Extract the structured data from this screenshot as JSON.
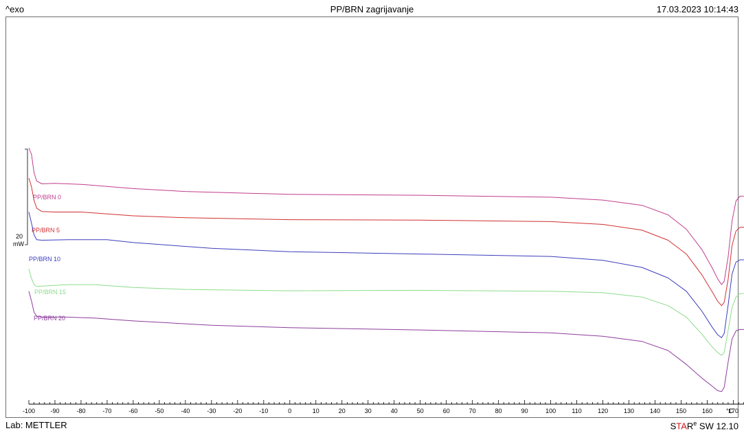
{
  "header": {
    "left": "^exo",
    "title": "PP/BRN zagrijavanje",
    "datetime": "17.03.2023 10:14:43"
  },
  "footer": {
    "lab": "Lab: METTLER",
    "software_star_s": "S",
    "software_star_ta": "TA",
    "software_star_r": "R",
    "software_star_sup": "e",
    "software_version": " SW 12.10"
  },
  "chart_data": {
    "type": "line",
    "title": "PP/BRN zagrijavanje",
    "xlabel": "",
    "xunit": "°C",
    "ylabel": "^exo",
    "xlim": [
      -100,
      180
    ],
    "xticks": [
      -100,
      -90,
      -80,
      -70,
      -60,
      -50,
      -40,
      -30,
      -20,
      -10,
      0,
      10,
      20,
      30,
      40,
      50,
      60,
      70,
      80,
      90,
      100,
      110,
      120,
      130,
      140,
      150,
      160,
      170
    ],
    "scale_bar": {
      "value": "20",
      "unit": "mW",
      "mw": 20
    },
    "grid": false,
    "series": [
      {
        "name": "PP/BRN 0",
        "color": "#c03c8c",
        "points": [
          [
            -100,
            38.8
          ],
          [
            -99,
            37.5
          ],
          [
            -98,
            33.6
          ],
          [
            -97,
            31.9
          ],
          [
            -95,
            31.3
          ],
          [
            -90,
            31.4
          ],
          [
            -80,
            31.2
          ],
          [
            -60,
            30.3
          ],
          [
            -40,
            29.7
          ],
          [
            0,
            29.1
          ],
          [
            50,
            28.9
          ],
          [
            100,
            28.5
          ],
          [
            120,
            27.9
          ],
          [
            135,
            26.8
          ],
          [
            145,
            24.8
          ],
          [
            152,
            21.8
          ],
          [
            158,
            17.5
          ],
          [
            162,
            13.6
          ],
          [
            164,
            11.4
          ],
          [
            165.5,
            10.2
          ],
          [
            166.5,
            10.9
          ],
          [
            168,
            16.0
          ],
          [
            169.5,
            23.5
          ],
          [
            171,
            27.7
          ],
          [
            172.5,
            28.7
          ],
          [
            180,
            28.9
          ]
        ]
      },
      {
        "name": "PP/BRN 5",
        "color": "#d03030",
        "points": [
          [
            -100,
            32.5
          ],
          [
            -99,
            30.7
          ],
          [
            -98,
            27.8
          ],
          [
            -97,
            26.2
          ],
          [
            -95,
            25.5
          ],
          [
            -90,
            25.4
          ],
          [
            -80,
            25.4
          ],
          [
            -60,
            24.6
          ],
          [
            -40,
            24.2
          ],
          [
            0,
            23.8
          ],
          [
            50,
            23.7
          ],
          [
            100,
            23.4
          ],
          [
            120,
            22.8
          ],
          [
            135,
            21.6
          ],
          [
            145,
            19.5
          ],
          [
            152,
            16.6
          ],
          [
            158,
            12.2
          ],
          [
            162,
            8.6
          ],
          [
            164,
            6.7
          ],
          [
            165.5,
            5.8
          ],
          [
            166.5,
            6.5
          ],
          [
            168,
            11.3
          ],
          [
            169.5,
            18.4
          ],
          [
            171,
            21.4
          ],
          [
            172.5,
            22.2
          ],
          [
            180,
            22.3
          ]
        ]
      },
      {
        "name": "PP/BRN 10",
        "color": "#3c3cbe",
        "points": [
          [
            -100,
            25.4
          ],
          [
            -99,
            23.1
          ],
          [
            -98,
            20.6
          ],
          [
            -97,
            19.6
          ],
          [
            -95,
            19.5
          ],
          [
            -85,
            19.6
          ],
          [
            -70,
            19.6
          ],
          [
            -60,
            19.0
          ],
          [
            -30,
            17.8
          ],
          [
            0,
            17.1
          ],
          [
            50,
            16.6
          ],
          [
            100,
            16.1
          ],
          [
            120,
            15.3
          ],
          [
            135,
            13.8
          ],
          [
            145,
            11.6
          ],
          [
            152,
            8.8
          ],
          [
            158,
            4.6
          ],
          [
            162,
            1.2
          ],
          [
            164,
            -0.3
          ],
          [
            165.5,
            -0.9
          ],
          [
            166.5,
            0.0
          ],
          [
            168,
            5.9
          ],
          [
            169.5,
            12.4
          ],
          [
            171,
            14.9
          ],
          [
            172.5,
            15.4
          ],
          [
            180,
            15.4
          ]
        ]
      },
      {
        "name": "PP/BRN 15",
        "color": "#8cdc8c",
        "points": [
          [
            -100,
            13.5
          ],
          [
            -99,
            11.5
          ],
          [
            -98,
            10.2
          ],
          [
            -97,
            9.8
          ],
          [
            -95,
            9.9
          ],
          [
            -85,
            10.2
          ],
          [
            -75,
            10.2
          ],
          [
            -60,
            9.6
          ],
          [
            -40,
            9.2
          ],
          [
            0,
            8.9
          ],
          [
            50,
            9.0
          ],
          [
            100,
            8.8
          ],
          [
            120,
            8.5
          ],
          [
            135,
            7.6
          ],
          [
            145,
            5.8
          ],
          [
            152,
            3.4
          ],
          [
            158,
            -0.2
          ],
          [
            162,
            -2.9
          ],
          [
            164,
            -4.0
          ],
          [
            165.5,
            -4.6
          ],
          [
            166.5,
            -4.0
          ],
          [
            168,
            0.6
          ],
          [
            169.5,
            5.4
          ],
          [
            171,
            7.6
          ],
          [
            172.5,
            8.3
          ],
          [
            180,
            8.5
          ]
        ]
      },
      {
        "name": "PP/BRN 20",
        "color": "#8c3c9c",
        "points": [
          [
            -100,
            8.8
          ],
          [
            -99,
            6.8
          ],
          [
            -98,
            4.4
          ],
          [
            -97,
            3.6
          ],
          [
            -95,
            3.4
          ],
          [
            -85,
            3.4
          ],
          [
            -75,
            3.2
          ],
          [
            -60,
            2.6
          ],
          [
            -30,
            1.7
          ],
          [
            0,
            1.2
          ],
          [
            50,
            0.7
          ],
          [
            100,
            0.1
          ],
          [
            120,
            -0.6
          ],
          [
            135,
            -1.7
          ],
          [
            145,
            -3.6
          ],
          [
            152,
            -6.5
          ],
          [
            158,
            -9.4
          ],
          [
            162,
            -11.1
          ],
          [
            164,
            -12.0
          ],
          [
            165.5,
            -12.2
          ],
          [
            166.5,
            -11.3
          ],
          [
            168,
            -6.0
          ],
          [
            169.5,
            -1.2
          ],
          [
            171,
            0.5
          ],
          [
            172.5,
            0.8
          ],
          [
            180,
            0.8
          ]
        ]
      }
    ]
  }
}
